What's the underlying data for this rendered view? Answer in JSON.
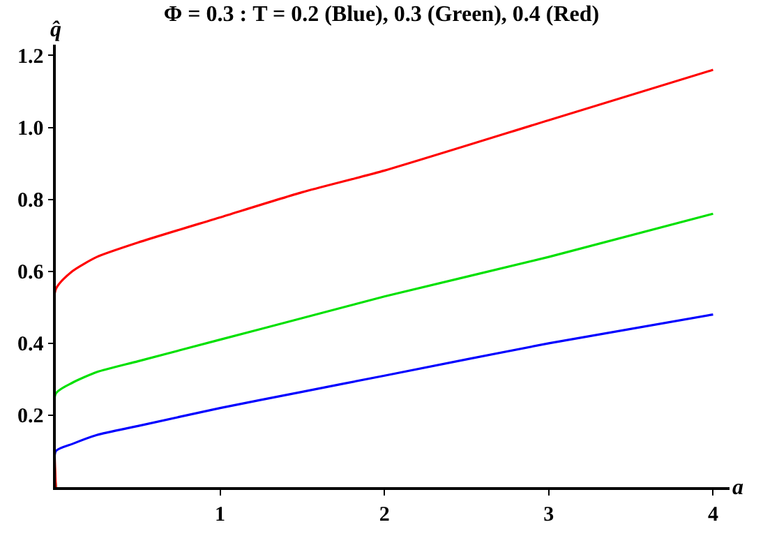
{
  "chart_data": {
    "type": "line",
    "title": "Φ = 0.3 : T = 0.2 (Blue), 0.3 (Green), 0.4 (Red)",
    "xlabel": "a",
    "ylabel": "q̂",
    "xlim": [
      0,
      4.1
    ],
    "ylim": [
      0,
      1.23
    ],
    "xticks": [
      1,
      2,
      3,
      4
    ],
    "yticks": [
      0.2,
      0.4,
      0.6,
      0.8,
      {
        "value": 1,
        "label": "1.0"
      },
      1.2
    ],
    "grid": false,
    "legend": false,
    "marker": "none",
    "line_style": "solid",
    "series": [
      {
        "color": "#0000ff",
        "x": [
          0,
          0,
          0.1,
          0.25,
          0.5,
          1,
          1.5,
          2,
          3,
          4
        ],
        "values": [
          0,
          0.1,
          0.12,
          0.145,
          0.17,
          0.22,
          0.265,
          0.31,
          0.4,
          0.48
        ]
      },
      {
        "color": "#00e000",
        "x": [
          0,
          0,
          0.1,
          0.25,
          0.5,
          1,
          1.5,
          2,
          3,
          4
        ],
        "values": [
          0,
          0.26,
          0.29,
          0.32,
          0.35,
          0.41,
          0.47,
          0.53,
          0.64,
          0.76
        ]
      },
      {
        "color": "#ff0000",
        "x": [
          0,
          0,
          0.1,
          0.25,
          0.5,
          1,
          1.5,
          2,
          3,
          4
        ],
        "values": [
          0,
          0.55,
          0.6,
          0.64,
          0.68,
          0.75,
          0.82,
          0.88,
          1.02,
          1.16
        ]
      }
    ]
  }
}
